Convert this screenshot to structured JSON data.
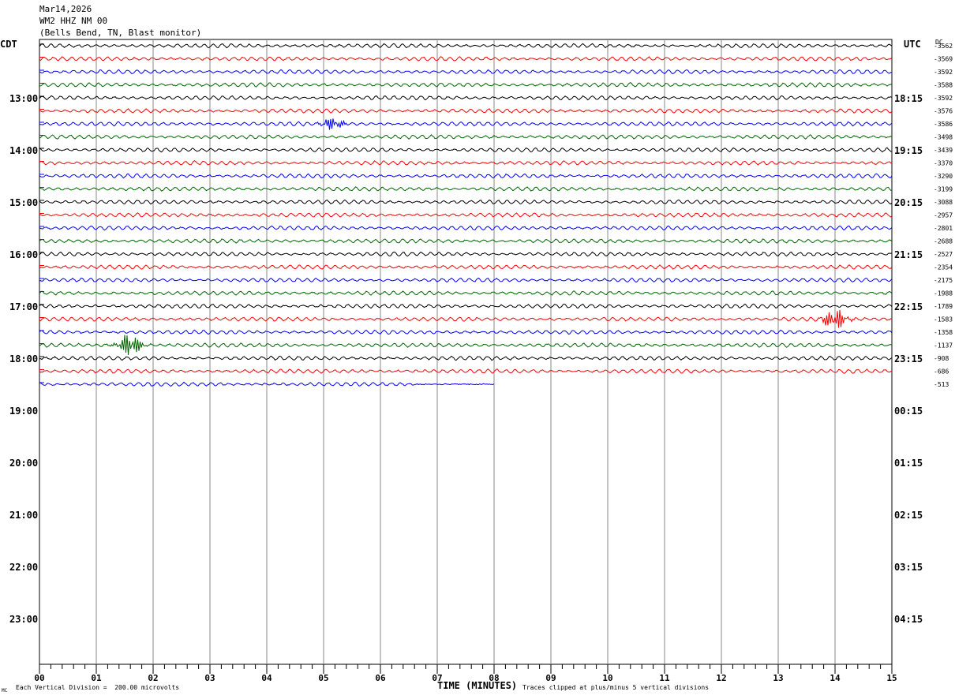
{
  "header": {
    "date": "Mar14,2026",
    "station": "WM2 HHZ NM 00",
    "location": "(Bells Bend, TN, Blast monitor)"
  },
  "left_zone": "CDT",
  "right_zone": "UTC",
  "dc_label": "DC",
  "footer": {
    "division": "Each Vertical Division =  200.00 microvolts",
    "xlabel": "TIME (MINUTES)",
    "clip": "Traces clipped at plus/minus 5 vertical divisions",
    "corner": "MC"
  },
  "chart_data": {
    "type": "line",
    "title": "WM2 HHZ NM 00",
    "xlabel": "TIME (MINUTES)",
    "xlim": [
      0,
      15
    ],
    "x_ticks": [
      "00",
      "01",
      "02",
      "03",
      "04",
      "05",
      "06",
      "07",
      "08",
      "09",
      "10",
      "11",
      "12",
      "13",
      "14",
      "15"
    ],
    "left_hour_labels": [
      "13:00",
      "14:00",
      "15:00",
      "16:00",
      "17:00",
      "18:00",
      "19:00",
      "20:00",
      "21:00",
      "22:00",
      "23:00"
    ],
    "right_hour_labels": [
      "18:15",
      "19:15",
      "20:15",
      "21:15",
      "22:15",
      "23:15",
      "00:15",
      "01:15",
      "02:15",
      "03:15",
      "04:15"
    ],
    "trace_colors": [
      "#000000",
      "#ff0000",
      "#0000ff",
      "#006400"
    ],
    "trace_offsets": [
      "-3562",
      "-3569",
      "-3592",
      "-3588",
      "-3592",
      "-3576",
      "-3586",
      "-3498",
      "-3439",
      "-3370",
      "-3290",
      "-3199",
      "-3088",
      "-2957",
      "-2801",
      "-2688",
      "-2527",
      "-2354",
      "-2175",
      "-1988",
      "-1789",
      "-1583",
      "-1358",
      "-1137",
      "-908",
      "-686",
      "-513"
    ],
    "trace_count": 27,
    "last_trace_end_minutes": 8.0,
    "events": [
      {
        "trace": 6,
        "minute": 5.15,
        "amplitude": 9,
        "color": "#0000ff"
      },
      {
        "trace": 21,
        "minute": 14.0,
        "amplitude": 16,
        "color": "#ff0000"
      },
      {
        "trace": 23,
        "minute": 1.6,
        "amplitude": 17,
        "color": "#006400"
      }
    ]
  }
}
